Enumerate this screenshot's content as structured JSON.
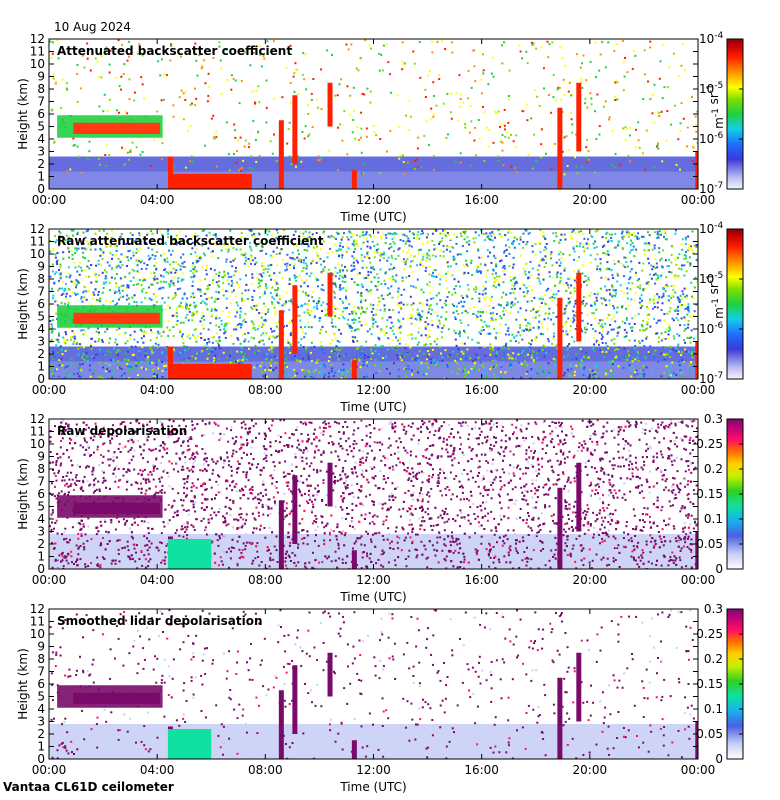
{
  "date_label": "10 Aug 2024",
  "footer": "Vantaa CL61D ceilometer",
  "chart_data": [
    {
      "type": "heatmap",
      "title": "Attenuated backscatter coefficient",
      "xlabel": "Time (UTC)",
      "ylabel": "Height (km)",
      "x_ticks": [
        "00:00",
        "04:00",
        "08:00",
        "12:00",
        "16:00",
        "20:00",
        "00:00"
      ],
      "y_ticks": [
        "0",
        "1",
        "2",
        "3",
        "4",
        "5",
        "6",
        "7",
        "8",
        "9",
        "10",
        "11",
        "12"
      ],
      "ylim": [
        0,
        12
      ],
      "colorbar": {
        "scale": "log",
        "ticks": [
          "10^-7",
          "10^-6",
          "10^-5",
          "10^-4"
        ],
        "unit": "m^-1 sr^-1"
      }
    },
    {
      "type": "heatmap",
      "title": "Raw attenuated backscatter coefficient",
      "xlabel": "Time (UTC)",
      "ylabel": "Height (km)",
      "x_ticks": [
        "00:00",
        "04:00",
        "08:00",
        "12:00",
        "16:00",
        "20:00",
        "00:00"
      ],
      "y_ticks": [
        "0",
        "1",
        "2",
        "3",
        "4",
        "5",
        "6",
        "7",
        "8",
        "9",
        "10",
        "11",
        "12"
      ],
      "ylim": [
        0,
        12
      ],
      "colorbar": {
        "scale": "log",
        "ticks": [
          "10^-7",
          "10^-6",
          "10^-5",
          "10^-4"
        ],
        "unit": "m^-1 sr^-1"
      }
    },
    {
      "type": "heatmap",
      "title": "Raw depolarisation",
      "xlabel": "Time (UTC)",
      "ylabel": "Height (km)",
      "x_ticks": [
        "00:00",
        "04:00",
        "08:00",
        "12:00",
        "16:00",
        "20:00",
        "00:00"
      ],
      "y_ticks": [
        "0",
        "1",
        "2",
        "3",
        "4",
        "5",
        "6",
        "7",
        "8",
        "9",
        "10",
        "11",
        "12"
      ],
      "ylim": [
        0,
        12
      ],
      "colorbar": {
        "scale": "linear",
        "ticks": [
          "0",
          "0.05",
          "0.1",
          "0.15",
          "0.2",
          "0.25",
          "0.3"
        ],
        "unit": ""
      }
    },
    {
      "type": "heatmap",
      "title": "Smoothed lidar depolarisation",
      "xlabel": "Time (UTC)",
      "ylabel": "Height (km)",
      "x_ticks": [
        "00:00",
        "04:00",
        "08:00",
        "12:00",
        "16:00",
        "20:00",
        "00:00"
      ],
      "y_ticks": [
        "0",
        "1",
        "2",
        "3",
        "4",
        "5",
        "6",
        "7",
        "8",
        "9",
        "10",
        "11",
        "12"
      ],
      "ylim": [
        0,
        12
      ],
      "colorbar": {
        "scale": "linear",
        "ticks": [
          "0",
          "0.05",
          "0.1",
          "0.15",
          "0.2",
          "0.25",
          "0.3"
        ],
        "unit": ""
      }
    }
  ]
}
